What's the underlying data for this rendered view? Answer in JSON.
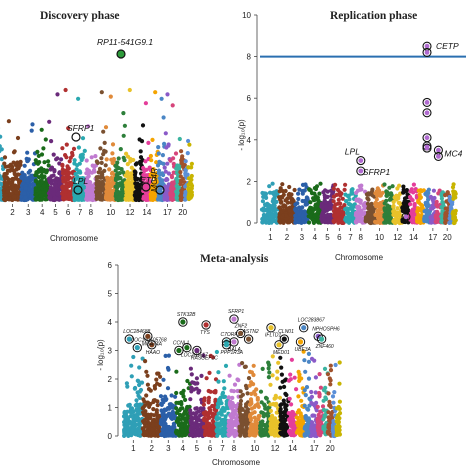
{
  "chart_data": [
    {
      "type": "scatter",
      "subtype": "manhattan",
      "title": "Discovery phase",
      "xlabel": "Chromosome",
      "ylabel": "",
      "xtick_labels": [
        "2",
        "3",
        "4",
        "5",
        "6",
        "7",
        "8",
        "10",
        "12",
        "14",
        "17",
        "20"
      ],
      "annotations": [
        {
          "label": "RP11-541G9.1",
          "chromosome": 12
        },
        {
          "label": "SFRP1",
          "chromosome": 8
        },
        {
          "label": "LPL",
          "chromosome": 8
        },
        {
          "label": "CETP",
          "chromosome": 16
        },
        {
          "label": "MC4R",
          "chromosome": 18
        }
      ],
      "series_colors": [
        "#2f9fb6",
        "#7b3f1d",
        "#2b5fa8",
        "#1a6b1a",
        "#6a2a7a",
        "#b03030",
        "#2aa8b0",
        "#c07ad0",
        "#7a5030",
        "#e08a3a",
        "#2d7f3a",
        "#e8c22a",
        "#111111",
        "#e43d9a",
        "#f4a400",
        "#4a86c5"
      ]
    },
    {
      "type": "scatter",
      "subtype": "manhattan",
      "title": "Replication phase",
      "xlabel": "Chromosome",
      "ylabel": "- log₁₀(p)",
      "ylim": [
        0,
        10
      ],
      "yticks": [
        0,
        2,
        4,
        6,
        8,
        10
      ],
      "xtick_labels": [
        "1",
        "2",
        "3",
        "4",
        "5",
        "6",
        "7",
        "8",
        "10",
        "12",
        "14",
        "17",
        "20"
      ],
      "significance_line": 8,
      "annotations": [
        {
          "label": "CETP",
          "chromosome": 16,
          "y": 8.5
        },
        {
          "label": "LPL",
          "chromosome": 8,
          "y": 3.0
        },
        {
          "label": "SFRP1",
          "chromosome": 8,
          "y": 2.5
        },
        {
          "label": "MC4",
          "chromosome": 18,
          "y": 3.4
        }
      ],
      "highlighted_points": [
        {
          "chromosome": 16,
          "y": 8.5
        },
        {
          "chromosome": 16,
          "y": 8.2
        },
        {
          "chromosome": 16,
          "y": 5.8
        },
        {
          "chromosome": 16,
          "y": 5.3
        },
        {
          "chromosome": 16,
          "y": 4.1
        },
        {
          "chromosome": 16,
          "y": 3.7
        },
        {
          "chromosome": 16,
          "y": 3.6
        },
        {
          "chromosome": 18,
          "y": 3.5
        },
        {
          "chromosome": 18,
          "y": 3.2
        },
        {
          "chromosome": 8,
          "y": 3.0
        },
        {
          "chromosome": 8,
          "y": 2.5
        },
        {
          "chromosome": 13,
          "y": 0.3
        }
      ]
    },
    {
      "type": "scatter",
      "subtype": "manhattan",
      "title": "Meta-analysis",
      "xlabel": "Chromosome",
      "ylabel": "- log₁₀(p)",
      "ylim": [
        0,
        6
      ],
      "yticks": [
        0,
        1,
        2,
        3,
        4,
        5,
        6
      ],
      "xtick_labels": [
        "1",
        "2",
        "3",
        "4",
        "5",
        "6",
        "7",
        "8",
        "10",
        "12",
        "14",
        "17",
        "20"
      ],
      "annotations": [
        {
          "label": "LOC284688",
          "chromosome": 1,
          "y": 3.4
        },
        {
          "label": "HAAO",
          "chromosome": 2,
          "y": 3.2
        },
        {
          "label": "LOC100505768",
          "chromosome": 1,
          "y": 3.1
        },
        {
          "label": "MGAT4A",
          "chromosome": 2,
          "y": 3.5
        },
        {
          "label": "STK32B",
          "chromosome": 4,
          "y": 4.0
        },
        {
          "label": "LOC201617",
          "chromosome": 4,
          "y": 3.1
        },
        {
          "label": "CCNL1",
          "chromosome": 4,
          "y": 3.0
        },
        {
          "label": "RASGEF1C",
          "chromosome": 5,
          "y": 3.0
        },
        {
          "label": "C7ORF10",
          "chromosome": 7,
          "y": 3.3
        },
        {
          "label": "TYS",
          "chromosome": 6,
          "y": 3.9
        },
        {
          "label": "SFRP1",
          "chromosome": 8,
          "y": 4.1
        },
        {
          "label": "PPP1R3A",
          "chromosome": 7,
          "y": 3.2
        },
        {
          "label": "ZNF2",
          "chromosome": 9,
          "y": 3.6
        },
        {
          "label": "BALA",
          "chromosome": 8,
          "y": 3.3
        },
        {
          "label": "ASTN2",
          "chromosome": 9,
          "y": 3.4
        },
        {
          "label": "IFLTD1",
          "chromosome": 12,
          "y": 3.8
        },
        {
          "label": "CLN01",
          "chromosome": 13,
          "y": 3.4
        },
        {
          "label": "MED01",
          "chromosome": 12,
          "y": 3.2
        },
        {
          "label": "LOC283867",
          "chromosome": 16,
          "y": 3.8
        },
        {
          "label": "UBE3A",
          "chromosome": 15,
          "y": 3.3
        },
        {
          "label": "NPHOSPH6",
          "chromosome": 17,
          "y": 3.5
        },
        {
          "label": "ZNF460",
          "chromosome": 19,
          "y": 3.4
        }
      ]
    }
  ]
}
